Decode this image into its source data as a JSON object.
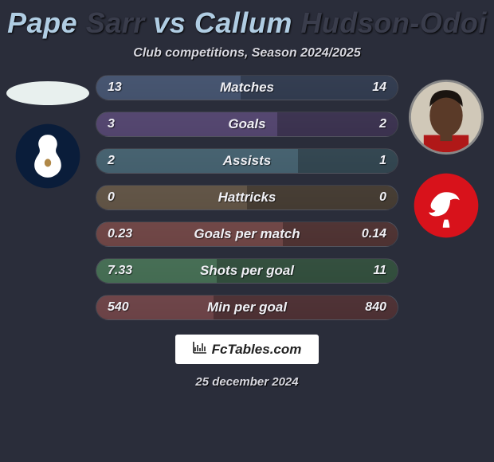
{
  "title": {
    "p1_first": "Pape",
    "p1_last": "Sarr",
    "vs": "vs",
    "p2_first": "Callum",
    "p2_last": "Hudson-Odoi"
  },
  "subtitle": "Club competitions, Season 2024/2025",
  "player1": {
    "avatar_bg": "#e8f0ee",
    "club_bg": "#0a1d3a",
    "club_accent": "#ffffff"
  },
  "player2": {
    "avatar_skin": "#5a3a28",
    "club_bg": "#d8121b",
    "club_accent": "#ffffff"
  },
  "rows": [
    {
      "label": "Matches",
      "left": "13",
      "right": "14",
      "bar_left_pct": 48,
      "bar_right_pct": 52,
      "color": "#4a5a78"
    },
    {
      "label": "Goals",
      "left": "3",
      "right": "2",
      "bar_left_pct": 60,
      "bar_right_pct": 40,
      "color": "#5a4a78"
    },
    {
      "label": "Assists",
      "left": "2",
      "right": "1",
      "bar_left_pct": 67,
      "bar_right_pct": 33,
      "color": "#4a6a78"
    },
    {
      "label": "Hattricks",
      "left": "0",
      "right": "0",
      "bar_left_pct": 50,
      "bar_right_pct": 50,
      "color": "#6a5a48"
    },
    {
      "label": "Goals per match",
      "left": "0.23",
      "right": "0.14",
      "bar_left_pct": 62,
      "bar_right_pct": 38,
      "color": "#7a4a48"
    },
    {
      "label": "Shots per goal",
      "left": "7.33",
      "right": "11",
      "bar_left_pct": 40,
      "bar_right_pct": 60,
      "color": "#4a7858"
    },
    {
      "label": "Min per goal",
      "left": "540",
      "right": "840",
      "bar_left_pct": 39,
      "bar_right_pct": 61,
      "color": "#78484a"
    }
  ],
  "footer": {
    "brand": "FcTables.com",
    "date": "25 december 2024"
  },
  "palette": {
    "bg": "#2a2d3a",
    "title_light": "#b0cde3",
    "title_dark": "#3a3d4c",
    "text": "#d8d8e0"
  }
}
